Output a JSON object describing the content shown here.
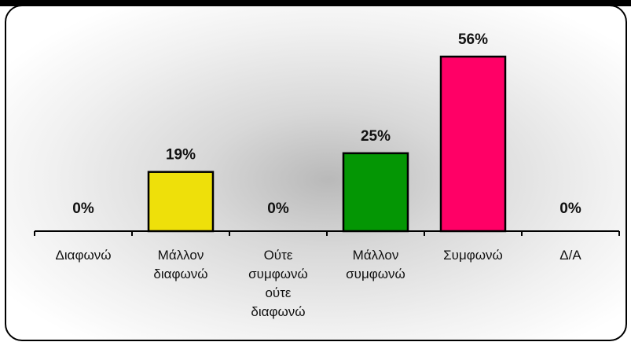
{
  "chart_data": {
    "type": "bar",
    "categories": [
      [
        "Διαφωνώ"
      ],
      [
        "Μάλλον",
        "διαφωνώ"
      ],
      [
        "Ούτε",
        "συμφωνώ",
        "ούτε",
        "διαφωνώ"
      ],
      [
        "Μάλλον",
        "συμφωνώ"
      ],
      [
        "Συμφωνώ"
      ],
      [
        "Δ/Α"
      ]
    ],
    "values": [
      0,
      19,
      0,
      25,
      56,
      0
    ],
    "value_labels": [
      "0%",
      "19%",
      "0%",
      "25%",
      "56%",
      "0%"
    ],
    "colors": [
      "#ffffff",
      "#eee00a",
      "#ffffff",
      "#049604",
      "#ff0066",
      "#ffffff"
    ],
    "ylim": [
      0,
      60
    ],
    "grid": false,
    "legend": "none"
  }
}
